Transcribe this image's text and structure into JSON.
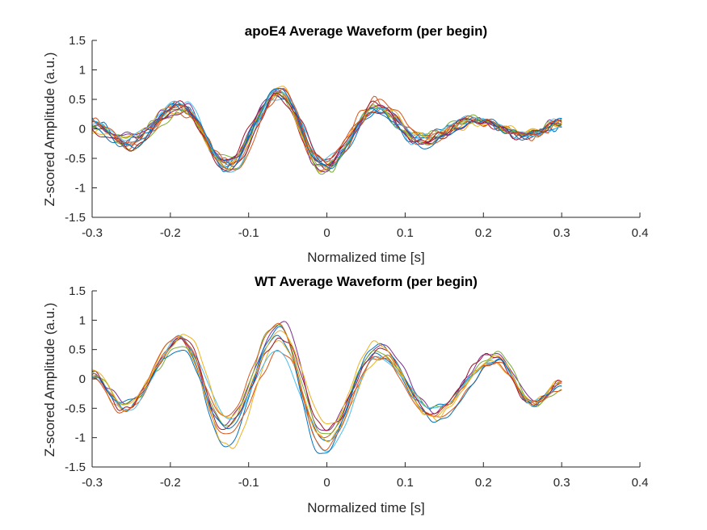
{
  "chart_data": [
    {
      "type": "line",
      "title": "apoE4 Average Waveform (per begin)",
      "xlabel": "Normalized time [s]",
      "ylabel": "Z-scored Amplitude (a.u.)",
      "xlim": [
        -0.3,
        0.4
      ],
      "ylim": [
        -1.5,
        1.5
      ],
      "xticks": [
        -0.3,
        -0.2,
        -0.1,
        0,
        0.1,
        0.2,
        0.3,
        0.4
      ],
      "xtick_labels": [
        "-0.3",
        "-0.2",
        "-0.1",
        "0",
        "0.1",
        "0.2",
        "0.3",
        "0.4"
      ],
      "yticks": [
        -1.5,
        -1,
        -0.5,
        0,
        0.5,
        1,
        1.5
      ],
      "ytick_labels": [
        "-1.5",
        "-1",
        "-0.5",
        "0",
        "0.5",
        "1",
        "1.5"
      ],
      "grid": false,
      "legend": "none",
      "x_range": [
        -0.3,
        0.3
      ],
      "series_count": 16,
      "extrema": {
        "x": [
          -0.3,
          -0.255,
          -0.185,
          -0.127,
          -0.06,
          -0.003,
          0.065,
          0.12,
          0.19,
          0.255,
          0.3
        ],
        "y": [
          0.05,
          -0.22,
          0.36,
          -0.62,
          0.63,
          -0.62,
          0.38,
          -0.2,
          0.15,
          -0.1,
          0.08
        ],
        "spread": [
          0.12,
          0.12,
          0.12,
          0.13,
          0.1,
          0.12,
          0.1,
          0.1,
          0.06,
          0.06,
          0.08
        ]
      },
      "colors": [
        "#0072BD",
        "#D95319",
        "#EDB120",
        "#7E2F8E",
        "#77AC30",
        "#4DBEEE",
        "#A2142F",
        "#0072BD",
        "#D95319",
        "#EDB120",
        "#7E2F8E",
        "#77AC30",
        "#4DBEEE",
        "#A2142F",
        "#0072BD",
        "#D95319"
      ]
    },
    {
      "type": "line",
      "title": "WT Average Waveform (per begin)",
      "xlabel": "Normalized time [s]",
      "ylabel": "Z-scored Amplitude (a.u.)",
      "xlim": [
        -0.3,
        0.4
      ],
      "ylim": [
        -1.5,
        1.5
      ],
      "xticks": [
        -0.3,
        -0.2,
        -0.1,
        0,
        0.1,
        0.2,
        0.3,
        0.4
      ],
      "xtick_labels": [
        "-0.3",
        "-0.2",
        "-0.1",
        "0",
        "0.1",
        "0.2",
        "0.3",
        "0.4"
      ],
      "yticks": [
        -1.5,
        -1,
        -0.5,
        0,
        0.5,
        1,
        1.5
      ],
      "ytick_labels": [
        "-1.5",
        "-1",
        "-0.5",
        "0",
        "0.5",
        "1",
        "1.5"
      ],
      "grid": false,
      "legend": "none",
      "x_range": [
        -0.3,
        0.3
      ],
      "series_count": 10,
      "extrema": {
        "x": [
          -0.3,
          -0.26,
          -0.185,
          -0.128,
          -0.06,
          -0.002,
          0.065,
          0.135,
          0.215,
          0.265,
          0.3
        ],
        "y": [
          0.05,
          -0.5,
          0.55,
          -0.9,
          0.72,
          -1.0,
          0.52,
          -0.6,
          0.35,
          -0.38,
          -0.1
        ],
        "spread": [
          0.12,
          0.2,
          0.22,
          0.3,
          0.25,
          0.35,
          0.18,
          0.12,
          0.1,
          0.08,
          0.1
        ]
      },
      "colors": [
        "#0072BD",
        "#D95319",
        "#EDB120",
        "#7E2F8E",
        "#77AC30",
        "#4DBEEE",
        "#A2142F",
        "#0072BD",
        "#D95319",
        "#EDB120"
      ]
    }
  ]
}
